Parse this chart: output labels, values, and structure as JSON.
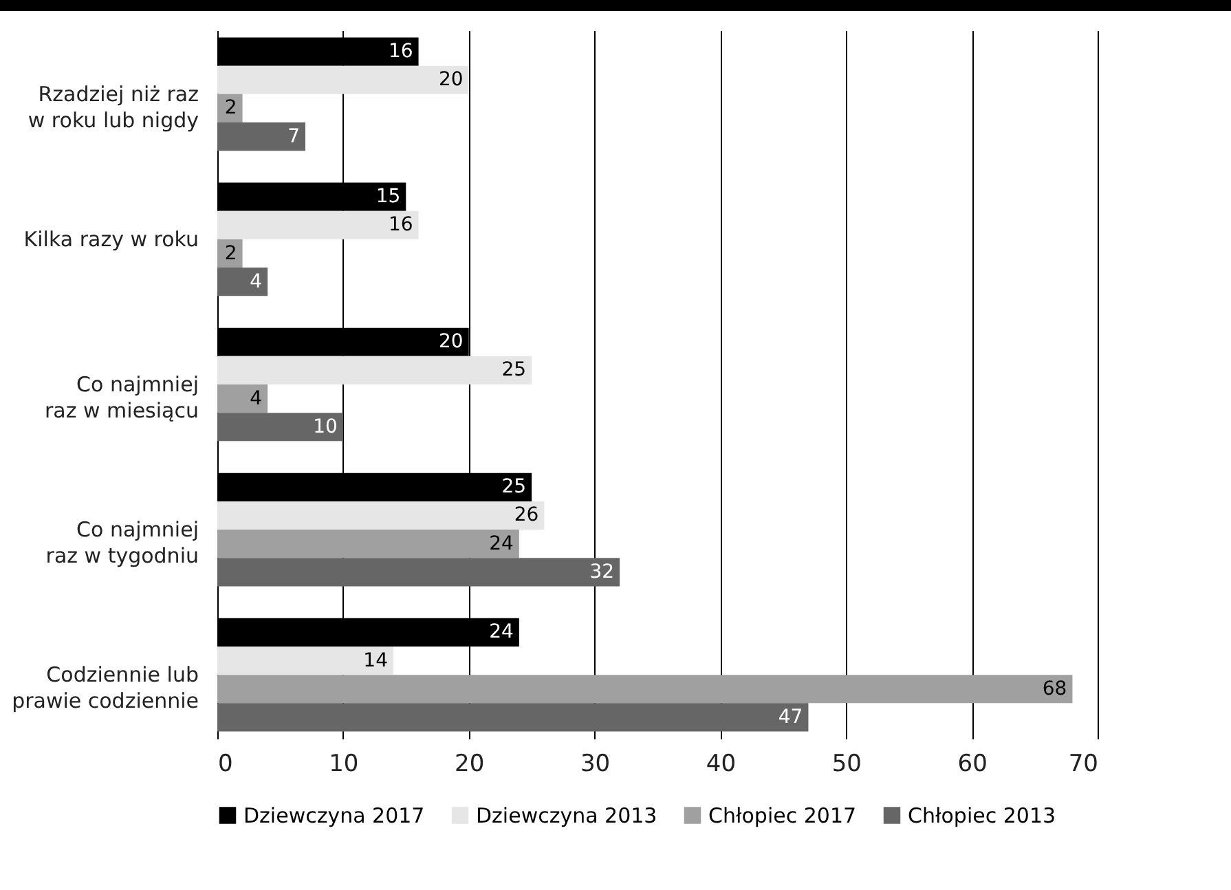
{
  "chart_data": {
    "type": "bar",
    "orientation": "horizontal",
    "categories": [
      "Rzadziej niż raz w roku lub nigdy",
      "Kilka razy w roku",
      "Co najmniej raz w miesiącu",
      "Co najmniej raz w tygodniu",
      "Codziennie lub prawie codziennie"
    ],
    "series": [
      {
        "name": "Dziewczyna 2017",
        "color": "#000000",
        "values": [
          16,
          15,
          20,
          25,
          24
        ]
      },
      {
        "name": "Dziewczyna 2013",
        "color": "#e6e6e6",
        "values": [
          20,
          16,
          25,
          26,
          14
        ]
      },
      {
        "name": "Chłopiec 2017",
        "color": "#a0a0a0",
        "values": [
          2,
          2,
          4,
          24,
          68
        ]
      },
      {
        "name": "Chłopiec 2013",
        "color": "#666666",
        "values": [
          7,
          4,
          10,
          32,
          47
        ]
      }
    ],
    "xlim": [
      0,
      70
    ],
    "xticks": [
      0,
      10,
      20,
      30,
      40,
      50,
      60,
      70
    ],
    "grid": "x",
    "legend": "bottom",
    "data_labels": true
  }
}
